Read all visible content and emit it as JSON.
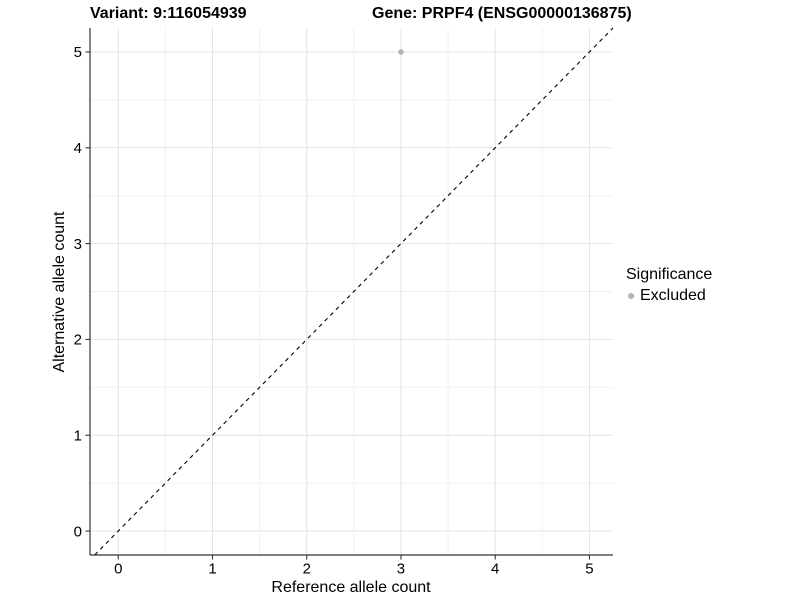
{
  "header": {
    "title_variant": "Variant: 9:116054939",
    "title_gene": "Gene: PRPF4 (ENSG00000136875)"
  },
  "chart_data": {
    "type": "scatter",
    "title_left": "Variant: 9:116054939",
    "title_right": "Gene: PRPF4 (ENSG00000136875)",
    "xlabel": "Reference allele count",
    "ylabel": "Alternative allele count",
    "x_ticks": [
      0,
      1,
      2,
      3,
      4,
      5
    ],
    "y_ticks": [
      0,
      1,
      2,
      3,
      4,
      5
    ],
    "x_minor_ticks": [
      0.5,
      1.5,
      2.5,
      3.5,
      4.5
    ],
    "y_minor_ticks": [
      0.5,
      1.5,
      2.5,
      3.5,
      4.5
    ],
    "x_domain": [
      -0.3,
      5.25
    ],
    "y_domain": [
      -0.25,
      5.25
    ],
    "points": [
      {
        "x": 3,
        "y": 5,
        "series": "Excluded"
      }
    ],
    "series": [
      {
        "name": "Excluded",
        "color": "#b3b3b3"
      }
    ],
    "identity_line": {
      "slope": 1,
      "intercept": 0,
      "style": "dashed",
      "color": "#000000"
    },
    "grid": {
      "major_color": "#e4e4e4",
      "minor_color": "#f0f0f0",
      "background": "#ffffff"
    },
    "axis": {
      "line_color": "#333333",
      "tick_color": "#333333",
      "tick_label_size": 15
    },
    "legend": {
      "title": "Significance",
      "position": "right",
      "entries": [
        {
          "label": "Excluded",
          "color": "#b3b3b3"
        }
      ]
    }
  }
}
